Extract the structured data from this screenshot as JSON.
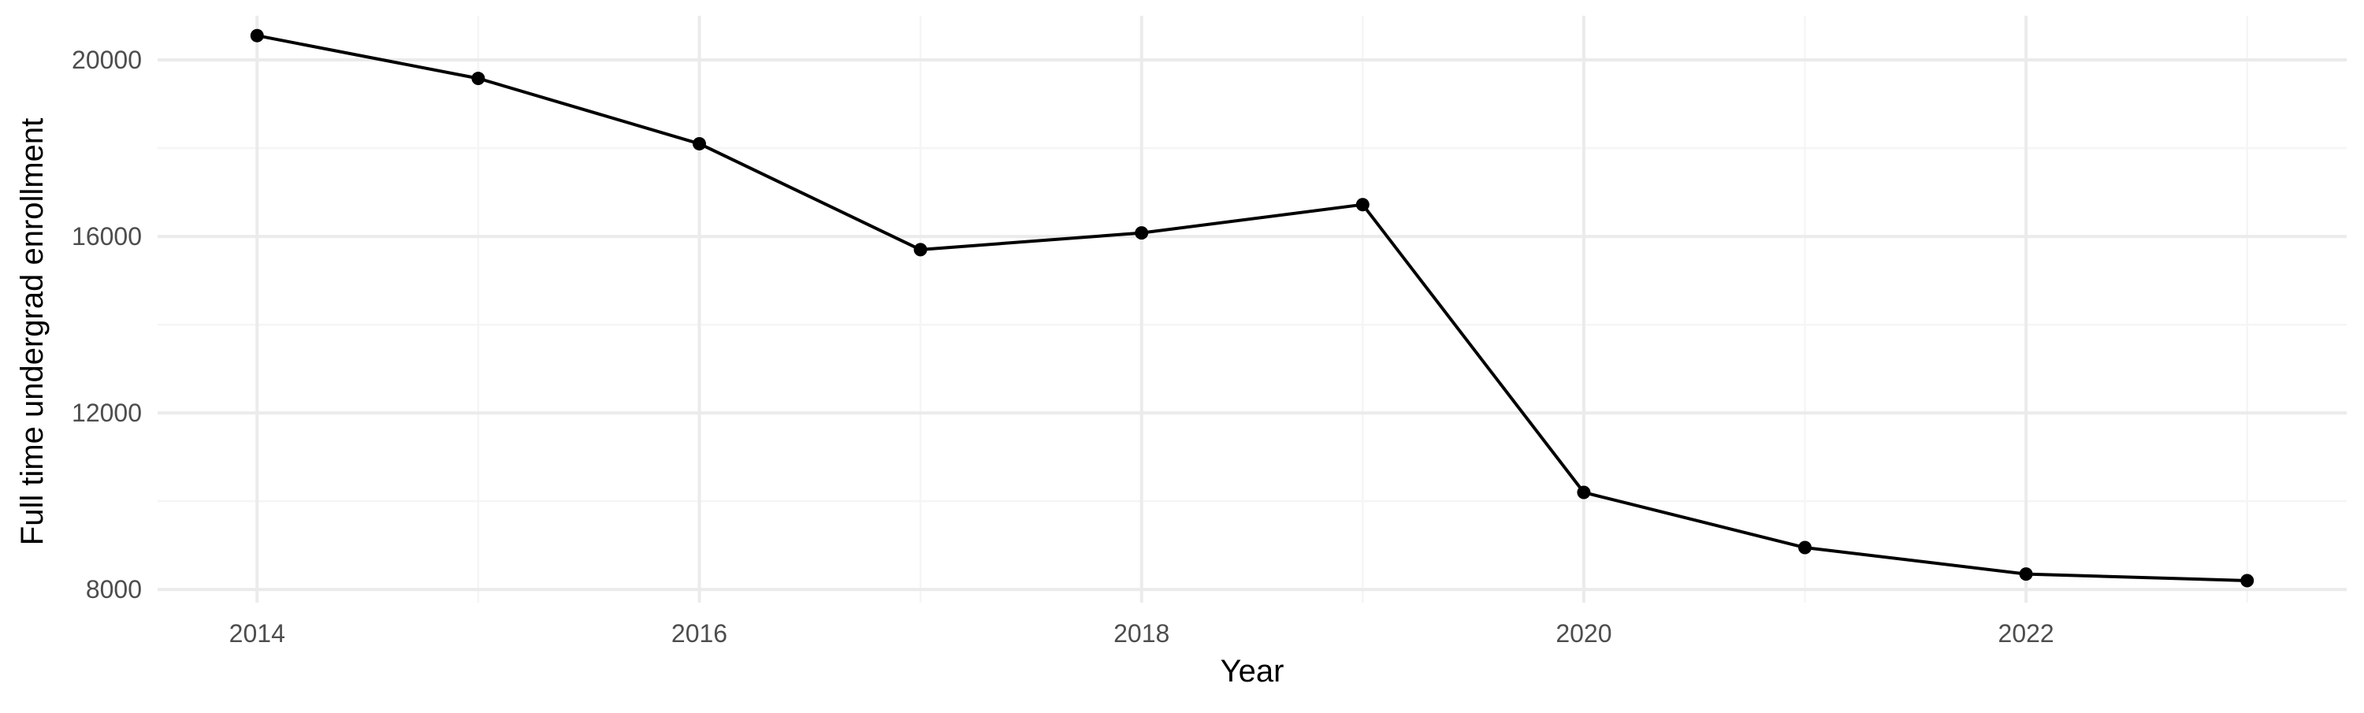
{
  "chart_data": {
    "type": "line",
    "title": "",
    "xlabel": "Year",
    "ylabel": "Full time undergrad enrollment",
    "x": [
      2014,
      2015,
      2016,
      2017,
      2018,
      2019,
      2020,
      2021,
      2022,
      2023
    ],
    "y": [
      20550,
      19580,
      18100,
      15700,
      16080,
      16720,
      10200,
      8950,
      8350,
      8200
    ],
    "xlim": [
      2013.55,
      2023.45
    ],
    "ylim": [
      7700,
      21000
    ],
    "x_ticks": [
      2014,
      2016,
      2018,
      2020,
      2022
    ],
    "x_tick_labels": [
      "2014",
      "2016",
      "2018",
      "2020",
      "2022"
    ],
    "y_ticks": [
      8000,
      12000,
      16000,
      20000
    ],
    "y_tick_labels": [
      "8000",
      "12000",
      "16000",
      "20000"
    ],
    "grid": true,
    "legend": "none",
    "colors": {
      "line": "#000000",
      "point": "#000000",
      "grid_major": "#ebebeb",
      "grid_minor": "#f5f5f5",
      "tick_label": "#4d4d4d",
      "axis_title": "#000000"
    }
  }
}
